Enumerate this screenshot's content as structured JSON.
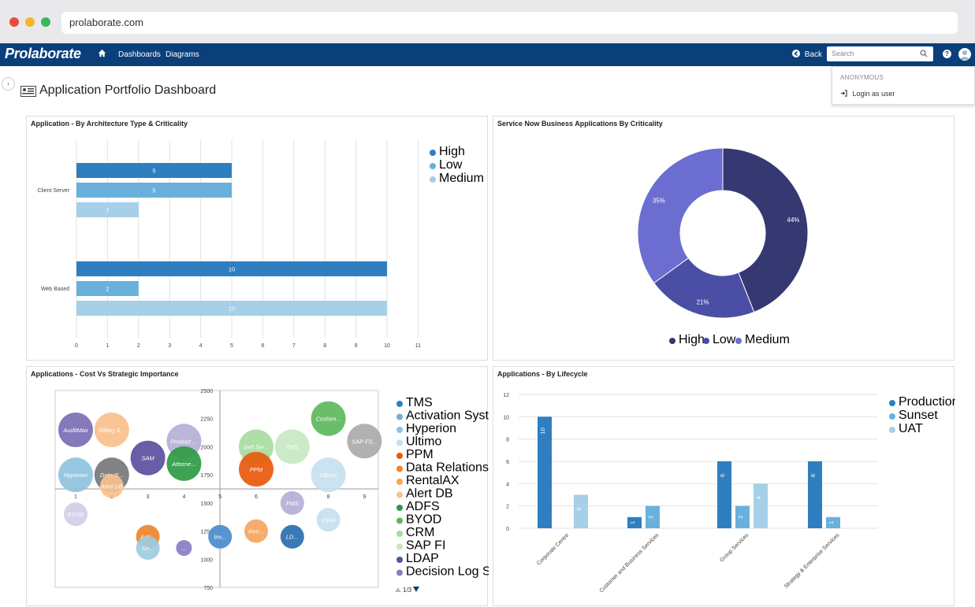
{
  "browser": {
    "url": "prolaborate.com"
  },
  "navbar": {
    "brand": "Prolaborate",
    "links": [
      "Dashboards",
      "Diagrams"
    ],
    "back_label": "Back",
    "search_placeholder": "Search"
  },
  "user_menu": {
    "header": "ANONYMOUS",
    "login_label": "Login as user"
  },
  "page": {
    "title": "Application Portfolio Dashboard"
  },
  "panels": {
    "arch": "Application - By Architecture Type & Criticality",
    "servicenow": "Service Now Business Applications By Criticality",
    "bubble": "Applications - Cost Vs Strategic Importance",
    "lifecycle": "Applications - By Lifecycle"
  },
  "colors": {
    "high": "#2f7fc0",
    "low": "#6ab0dc",
    "medium": "#a6cfe8",
    "pie_high": "#363872",
    "pie_low": "#4b4ea5",
    "pie_medium": "#6b6ed0"
  },
  "chart_data": [
    {
      "type": "bar",
      "orientation": "horizontal",
      "categories": [
        "Client Server",
        "Web Based"
      ],
      "series": [
        {
          "name": "High",
          "values": [
            5,
            10
          ]
        },
        {
          "name": "Low",
          "values": [
            5,
            2
          ]
        },
        {
          "name": "Medium",
          "values": [
            2,
            10
          ]
        }
      ],
      "xticks": [
        0,
        1,
        2,
        3,
        4,
        5,
        6,
        7,
        8,
        9,
        10,
        11
      ],
      "xlim": [
        0,
        11
      ],
      "legend": "top-right"
    },
    {
      "type": "pie",
      "donut": true,
      "slices": [
        {
          "name": "High",
          "value": 44,
          "label": "44%"
        },
        {
          "name": "Low",
          "value": 21,
          "label": "21%"
        },
        {
          "name": "Medium",
          "value": 35,
          "label": "35%"
        }
      ],
      "legend": "bottom"
    },
    {
      "type": "scatter",
      "bubble": true,
      "xticks": [
        1,
        2,
        3,
        4,
        5,
        6,
        7,
        8,
        9
      ],
      "yticks": [
        750,
        1000,
        1250,
        1500,
        1750,
        2000,
        2250,
        2500
      ],
      "ylim": [
        750,
        2500
      ],
      "points": [
        {
          "label": "AuditMax",
          "x": 1,
          "y": 2150,
          "color": "#7b6db5"
        },
        {
          "label": "Billing S...",
          "x": 2,
          "y": 2150,
          "color": "#f9c08c"
        },
        {
          "label": "SAM",
          "x": 3,
          "y": 1900,
          "color": "#5b4fa0"
        },
        {
          "label": "Product ...",
          "x": 4,
          "y": 2050,
          "color": "#b4b0d6"
        },
        {
          "label": "Attorne...",
          "x": 4,
          "y": 1850,
          "color": "#2e9a45"
        },
        {
          "label": "Hyperion",
          "x": 1,
          "y": 1750,
          "color": "#8fc2e0"
        },
        {
          "label": "Data R...",
          "x": 2,
          "y": 1750,
          "color": "#777777"
        },
        {
          "label": "Alert DB",
          "x": 2,
          "y": 1650,
          "color": "#f9c08c"
        },
        {
          "label": "Self Ser...",
          "x": 6,
          "y": 2000,
          "color": "#a7dca0"
        },
        {
          "label": "TMS",
          "x": 7,
          "y": 2000,
          "color": "#c8e8c3"
        },
        {
          "label": "Custom...",
          "x": 8,
          "y": 2250,
          "color": "#5cb85c"
        },
        {
          "label": "SAP FS...",
          "x": 9,
          "y": 2050,
          "color": "#aaaaaa"
        },
        {
          "label": "PPM",
          "x": 6,
          "y": 1800,
          "color": "#e8590c"
        },
        {
          "label": "Ultimo",
          "x": 8,
          "y": 1750,
          "color": "#c6dff0"
        },
        {
          "label": "FMS",
          "x": 7,
          "y": 1500,
          "color": "#b4b0d6"
        },
        {
          "label": "BYOD",
          "x": 1,
          "y": 1400,
          "color": "#d0cde6"
        },
        {
          "label": "Acti...",
          "x": 3,
          "y": 1200,
          "color": "#f0842c"
        },
        {
          "label": "Se...",
          "x": 3,
          "y": 1100,
          "color": "#9ecbe0"
        },
        {
          "label": "...",
          "x": 4,
          "y": 1100,
          "color": "#8a7dc2"
        },
        {
          "label": "Inv...",
          "x": 5,
          "y": 1200,
          "color": "#4a8ccc"
        },
        {
          "label": "Ren...",
          "x": 6,
          "y": 1250,
          "color": "#f5a65e"
        },
        {
          "label": "LD...",
          "x": 7,
          "y": 1200,
          "color": "#2a6db0"
        },
        {
          "label": "CRM",
          "x": 8,
          "y": 1350,
          "color": "#c6dff0"
        }
      ],
      "legend": "right",
      "legend_items": [
        {
          "name": "TMS",
          "color": "#2f7fc0"
        },
        {
          "name": "Activation System",
          "color": "#6ab0dc"
        },
        {
          "name": "Hyperion",
          "color": "#8fc2e0"
        },
        {
          "name": "Ultimo",
          "color": "#c6dff0"
        },
        {
          "name": "PPM",
          "color": "#e8590c"
        },
        {
          "name": "Data Relationship ...",
          "color": "#f0842c"
        },
        {
          "name": "RentalAX",
          "color": "#f5a65e"
        },
        {
          "name": "Alert DB",
          "color": "#f9c08c"
        },
        {
          "name": "ADFS",
          "color": "#2e9a45"
        },
        {
          "name": "BYOD",
          "color": "#5cb85c"
        },
        {
          "name": "CRM",
          "color": "#a7dca0"
        },
        {
          "name": "SAP FI",
          "color": "#c8e8c3"
        },
        {
          "name": "LDAP",
          "color": "#5b4fa0"
        },
        {
          "name": "Decision Log System",
          "color": "#8a7dc2"
        }
      ],
      "legend_page": "1/3"
    },
    {
      "type": "bar",
      "categories": [
        "Corporate Centre",
        "Customer and Business Services",
        "Group Services",
        "Strategy & Enterprise Services"
      ],
      "series": [
        {
          "name": "Production",
          "values": [
            10,
            1,
            6,
            6
          ]
        },
        {
          "name": "Sunset",
          "values": [
            0,
            2,
            2,
            1
          ]
        },
        {
          "name": "UAT",
          "values": [
            3,
            0,
            4,
            0
          ]
        }
      ],
      "yticks": [
        0,
        2,
        4,
        6,
        8,
        10,
        12
      ],
      "ylim": [
        0,
        12
      ],
      "legend": "top-right"
    }
  ]
}
